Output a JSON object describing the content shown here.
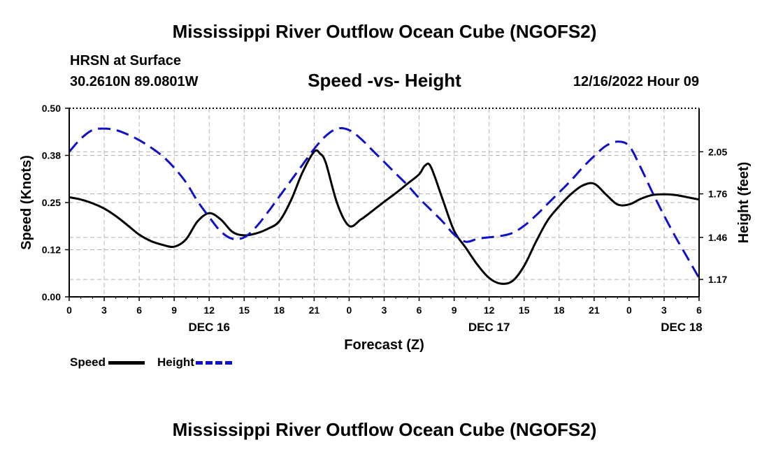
{
  "header": {
    "title": "Mississippi River Outflow Ocean Cube (NGOFS2)",
    "station_name": "HRSN at Surface",
    "station_coords": "30.2610N  89.0801W",
    "subtitle": "Speed -vs- Height",
    "run_time": "12/16/2022 Hour 09"
  },
  "footer": {
    "title": "Mississippi River Outflow Ocean Cube (NGOFS2)"
  },
  "legend": {
    "speed_label": "Speed",
    "height_label": "Height"
  },
  "colors": {
    "speed": "#000000",
    "height": "#1010c8",
    "grid": "#b4b4b4"
  },
  "chart_data": {
    "type": "line",
    "xlabel": "Forecast (Z)",
    "ylabel_left": "Speed (Knots)",
    "ylabel_right": "Height (feet)",
    "x_unit": "forecast hours from 12/16/2022 00Z",
    "xlim": [
      0,
      54
    ],
    "ylim_left": [
      0,
      0.5
    ],
    "ylim_right": [
      1.05,
      2.35
    ],
    "x_ticks": [
      0,
      3,
      6,
      9,
      12,
      15,
      18,
      21,
      24,
      27,
      30,
      33,
      36,
      39,
      42,
      45,
      48,
      51,
      54
    ],
    "x_tick_labels": [
      "0",
      "3",
      "6",
      "9",
      "12",
      "15",
      "18",
      "21",
      "0",
      "3",
      "6",
      "9",
      "12",
      "15",
      "18",
      "21",
      "0",
      "3",
      "6"
    ],
    "day_labels": [
      {
        "x": 12,
        "label": "DEC 16"
      },
      {
        "x": 36,
        "label": "DEC 17"
      },
      {
        "x": 52.5,
        "label": "DEC 18"
      }
    ],
    "y_ticks_left": [
      0.0,
      0.125,
      0.25,
      0.375,
      0.5
    ],
    "y_tick_labels_left": [
      "0.00",
      "0.12",
      "0.25",
      "0.38",
      "0.50"
    ],
    "y_ticks_right": [
      1.17,
      1.46,
      1.76,
      2.05
    ],
    "y_tick_labels_right": [
      "1.17",
      "1.46",
      "1.76",
      "2.05"
    ],
    "grid": true,
    "series": [
      {
        "name": "Speed",
        "axis": "left",
        "style": "solid",
        "x": [
          0,
          1,
          2,
          3,
          4,
          5,
          6,
          7,
          8,
          9,
          10,
          11,
          12,
          13,
          14,
          15,
          16,
          17,
          18,
          19,
          20,
          21,
          21.5,
          22,
          23,
          24,
          25,
          26,
          27,
          28,
          29,
          30,
          30.5,
          31,
          32,
          33,
          34,
          35,
          36,
          37,
          38,
          39,
          40,
          41,
          42,
          43,
          44,
          45,
          46,
          47,
          48,
          49,
          50,
          51,
          52,
          53,
          54
        ],
        "values": [
          0.264,
          0.258,
          0.248,
          0.234,
          0.214,
          0.19,
          0.165,
          0.148,
          0.138,
          0.133,
          0.152,
          0.2,
          0.222,
          0.205,
          0.172,
          0.163,
          0.168,
          0.18,
          0.2,
          0.255,
          0.33,
          0.385,
          0.38,
          0.355,
          0.245,
          0.188,
          0.205,
          0.228,
          0.252,
          0.275,
          0.3,
          0.325,
          0.348,
          0.345,
          0.26,
          0.175,
          0.13,
          0.085,
          0.05,
          0.035,
          0.042,
          0.082,
          0.145,
          0.202,
          0.24,
          0.272,
          0.295,
          0.3,
          0.272,
          0.245,
          0.245,
          0.26,
          0.27,
          0.272,
          0.27,
          0.264,
          0.258
        ]
      },
      {
        "name": "Height",
        "axis": "right",
        "style": "dashed",
        "x": [
          0,
          1,
          2,
          3,
          4,
          5,
          6,
          7,
          8,
          9,
          10,
          11,
          12,
          13,
          14,
          15,
          16,
          17,
          18,
          19,
          20,
          21,
          22,
          23,
          24,
          25,
          26,
          27,
          28,
          29,
          30,
          31,
          32,
          33,
          34,
          35,
          36,
          37,
          38,
          39,
          40,
          41,
          42,
          43,
          44,
          45,
          46,
          47,
          48,
          49,
          50,
          51,
          52,
          53,
          54
        ],
        "values": [
          2.05,
          2.14,
          2.2,
          2.21,
          2.2,
          2.17,
          2.13,
          2.08,
          2.02,
          1.94,
          1.84,
          1.71,
          1.6,
          1.5,
          1.45,
          1.46,
          1.53,
          1.63,
          1.74,
          1.85,
          1.96,
          2.07,
          2.16,
          2.21,
          2.2,
          2.14,
          2.06,
          1.98,
          1.9,
          1.82,
          1.73,
          1.65,
          1.57,
          1.48,
          1.43,
          1.45,
          1.46,
          1.47,
          1.49,
          1.54,
          1.61,
          1.69,
          1.77,
          1.85,
          1.94,
          2.02,
          2.09,
          2.12,
          2.09,
          1.94,
          1.77,
          1.61,
          1.46,
          1.32,
          1.18
        ]
      }
    ]
  }
}
